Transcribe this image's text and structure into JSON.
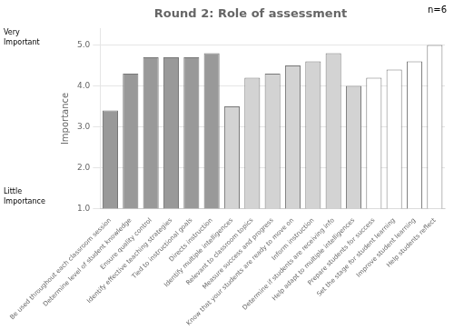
{
  "chart_data": {
    "type": "bar",
    "title": "Round 2: Role of assessment",
    "ylabel": "Importance",
    "annotations": [
      "Very\nImportant",
      "Little\nImportance",
      "n=6"
    ],
    "categories": [
      "Be used throughout each classroom session",
      "Determine level of student knowledge",
      "Ensure quality control",
      "Identify effective teaching strategies",
      "Tied to instructional goals",
      "Directs instruction",
      "Identify multiple intelligences",
      "Relevant to classroom topics",
      "Measure success and progress",
      "Know that your students are ready to move on",
      "Inform instruction",
      "Determine if students are receiving info",
      "Help adapt to multiple intelligences",
      "Prepare students for success",
      "Set the stage for student learning",
      "Improve student learning",
      "Help students reflect"
    ],
    "values": [
      3.4,
      4.3,
      4.7,
      4.7,
      4.7,
      4.8,
      3.5,
      4.2,
      4.3,
      4.5,
      4.6,
      4.8,
      4.0,
      4.2,
      4.4,
      4.6,
      5.0
    ],
    "colors": [
      "#999999",
      "#999999",
      "#999999",
      "#999999",
      "#999999",
      "#999999",
      "#d3d3d3",
      "#d3d3d3",
      "#d3d3d3",
      "#d3d3d3",
      "#d3d3d3",
      "#d3d3d3",
      "#d3d3d3",
      "#ffffff",
      "#ffffff",
      "#ffffff",
      "#ffffff"
    ],
    "ylim": [
      1.0,
      5.4
    ],
    "yticks": [
      {
        "value": 1.0,
        "label": "1.0"
      },
      {
        "value": 2.0,
        "label": "2.0"
      },
      {
        "value": 3.0,
        "label": "3.0"
      },
      {
        "value": 4.0,
        "label": "4.0"
      },
      {
        "value": 5.0,
        "label": "5.0"
      }
    ],
    "grid": true
  }
}
